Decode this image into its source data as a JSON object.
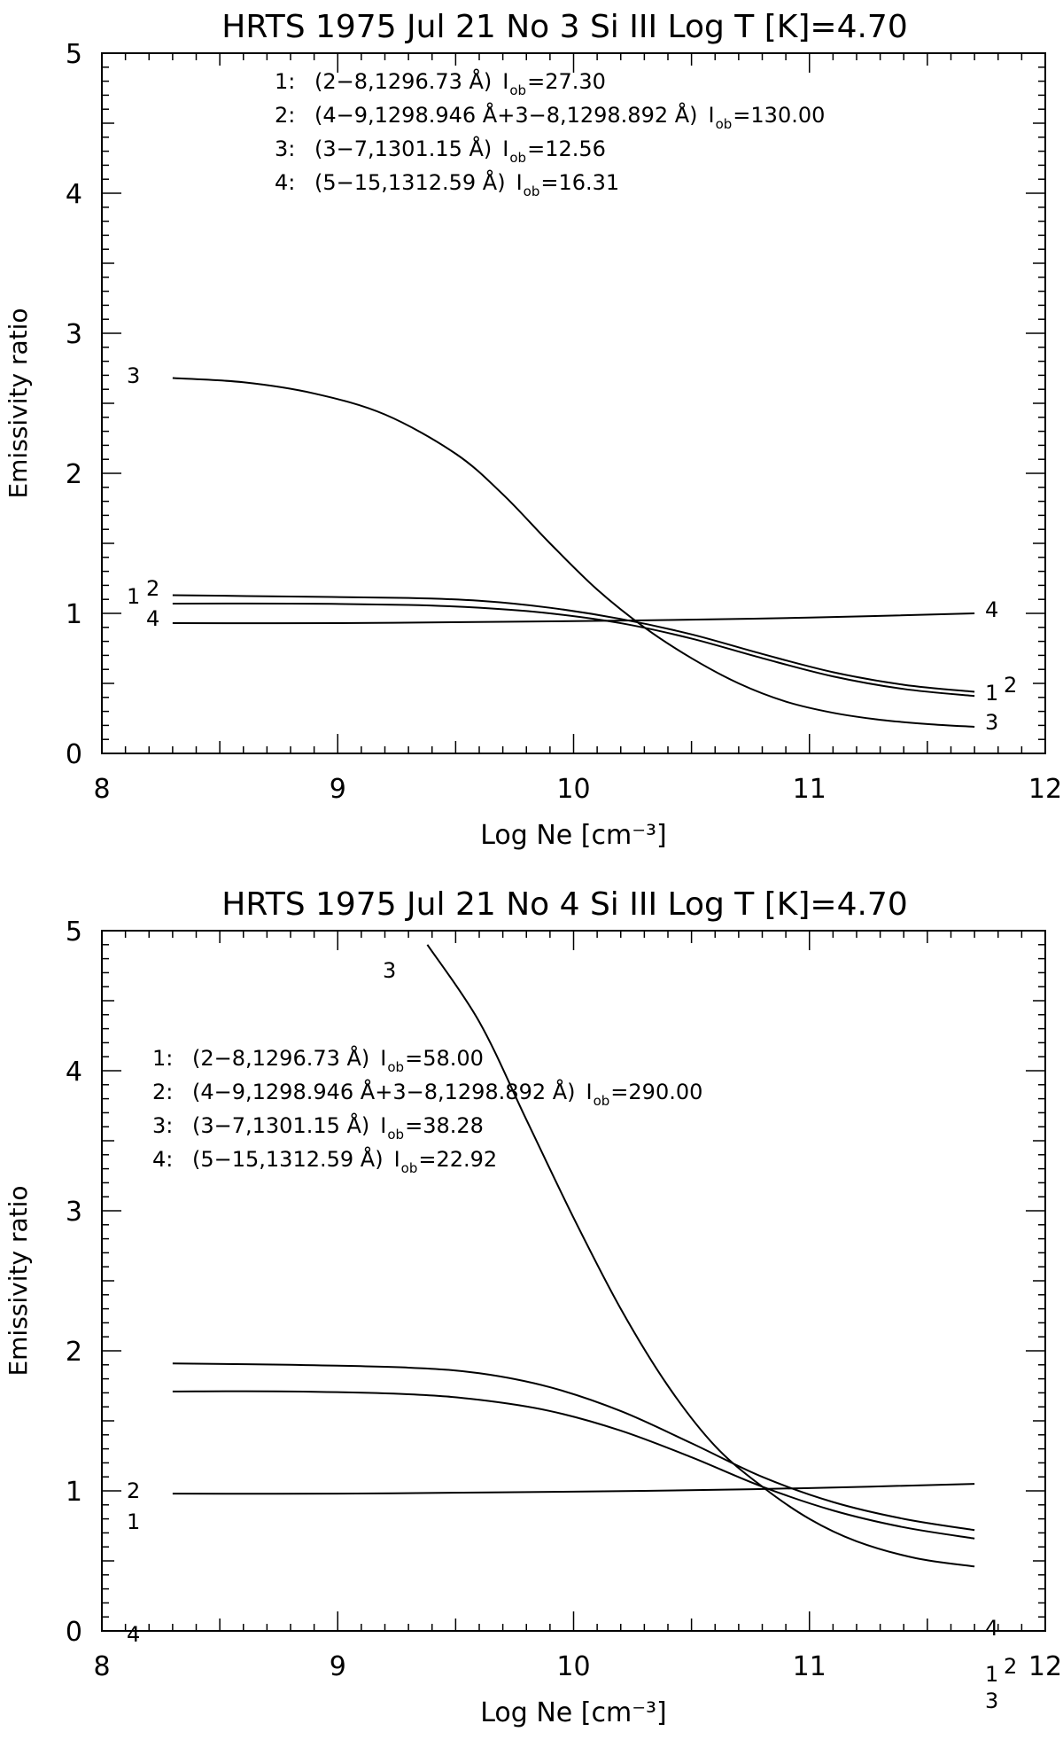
{
  "chart_data": [
    {
      "type": "line",
      "title": "HRTS 1975 Jul 21 No 3 Si III  Log T [K]=4.70",
      "xlabel": "Log Ne [cm⁻³]",
      "ylabel": "Emissivity ratio",
      "xlim": [
        8,
        12
      ],
      "ylim": [
        0,
        5
      ],
      "xticks": [
        "8",
        "9",
        "10",
        "11",
        "12"
      ],
      "yticks": [
        "0",
        "1",
        "2",
        "3",
        "4",
        "5"
      ],
      "grid": false,
      "legend_position": "top-left",
      "legend": [
        {
          "num": "1:",
          "desc": "(2−8,1296.73 Å)",
          "iob": "27.30"
        },
        {
          "num": "2:",
          "desc": "(4−9,1298.946 Å+3−8,1298.892 Å)",
          "iob": "130.00"
        },
        {
          "num": "3:",
          "desc": "(3−7,1301.15 Å)",
          "iob": "12.56"
        },
        {
          "num": "4:",
          "desc": "(5−15,1312.59 Å)",
          "iob": "16.31"
        }
      ],
      "series": [
        {
          "label": "1",
          "x": [
            8.3,
            8.8,
            9.3,
            9.6,
            9.9,
            10.2,
            10.5,
            10.8,
            11.1,
            11.4,
            11.7
          ],
          "y": [
            1.07,
            1.07,
            1.06,
            1.04,
            1.0,
            0.93,
            0.82,
            0.68,
            0.55,
            0.46,
            0.41
          ]
        },
        {
          "label": "2",
          "x": [
            8.3,
            8.8,
            9.3,
            9.6,
            9.9,
            10.2,
            10.5,
            10.8,
            11.1,
            11.4,
            11.7
          ],
          "y": [
            1.13,
            1.12,
            1.11,
            1.09,
            1.04,
            0.96,
            0.85,
            0.71,
            0.58,
            0.49,
            0.44
          ]
        },
        {
          "label": "3",
          "x": [
            8.3,
            8.6,
            8.9,
            9.2,
            9.5,
            9.7,
            9.9,
            10.1,
            10.3,
            10.5,
            10.7,
            10.9,
            11.1,
            11.3,
            11.5,
            11.7
          ],
          "y": [
            2.68,
            2.65,
            2.57,
            2.42,
            2.14,
            1.85,
            1.5,
            1.17,
            0.9,
            0.68,
            0.5,
            0.37,
            0.29,
            0.24,
            0.21,
            0.19
          ]
        },
        {
          "label": "4",
          "x": [
            8.3,
            9.0,
            9.7,
            10.3,
            11.0,
            11.7
          ],
          "y": [
            0.93,
            0.93,
            0.94,
            0.95,
            0.97,
            1.0
          ]
        }
      ]
    },
    {
      "type": "line",
      "title": "HRTS 1975 Jul 21 No 4 Si III  Log T [K]=4.70",
      "xlabel": "Log Ne [cm⁻³]",
      "ylabel": "Emissivity ratio",
      "xlim": [
        8,
        12
      ],
      "ylim": [
        0,
        5
      ],
      "xticks": [
        "8",
        "9",
        "10",
        "11",
        "12"
      ],
      "yticks": [
        "0",
        "1",
        "2",
        "3",
        "4",
        "5"
      ],
      "grid": false,
      "legend_position": "upper-left",
      "legend": [
        {
          "num": "1:",
          "desc": "(2−8,1296.73 Å)",
          "iob": "58.00"
        },
        {
          "num": "2:",
          "desc": "(4−9,1298.946 Å+3−8,1298.892 Å)",
          "iob": "290.00"
        },
        {
          "num": "3:",
          "desc": "(3−7,1301.15 Å)",
          "iob": "38.28"
        },
        {
          "num": "4:",
          "desc": "(5−15,1312.59 Å)",
          "iob": "22.92"
        }
      ],
      "series": [
        {
          "label": "1",
          "x": [
            8.3,
            8.8,
            9.3,
            9.6,
            9.9,
            10.2,
            10.5,
            10.8,
            11.1,
            11.4,
            11.7
          ],
          "y": [
            1.71,
            1.71,
            1.69,
            1.65,
            1.57,
            1.43,
            1.24,
            1.03,
            0.86,
            0.74,
            0.66
          ]
        },
        {
          "label": "2",
          "x": [
            8.3,
            8.8,
            9.3,
            9.6,
            9.9,
            10.2,
            10.5,
            10.8,
            11.1,
            11.4,
            11.7
          ],
          "y": [
            1.91,
            1.9,
            1.88,
            1.84,
            1.74,
            1.57,
            1.34,
            1.1,
            0.92,
            0.8,
            0.72
          ]
        },
        {
          "label": "3",
          "x": [
            9.38,
            9.6,
            9.8,
            10.0,
            10.2,
            10.4,
            10.6,
            10.8,
            11.0,
            11.2,
            11.45,
            11.7
          ],
          "y": [
            4.9,
            4.35,
            3.65,
            2.95,
            2.3,
            1.75,
            1.32,
            1.03,
            0.8,
            0.64,
            0.52,
            0.46
          ]
        },
        {
          "label": "4",
          "x": [
            8.3,
            9.0,
            9.7,
            10.3,
            11.0,
            11.7
          ],
          "y": [
            0.98,
            0.98,
            0.99,
            1.0,
            1.02,
            1.05
          ]
        }
      ]
    }
  ]
}
